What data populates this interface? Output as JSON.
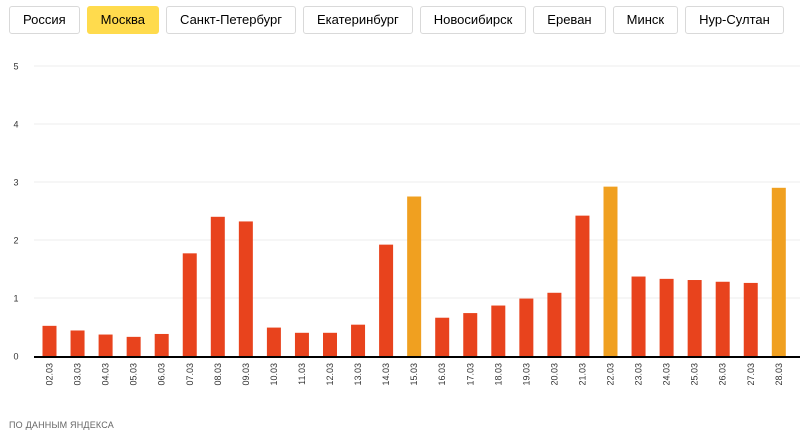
{
  "tabs": [
    {
      "label": "Россия",
      "active": false
    },
    {
      "label": "Москва",
      "active": true
    },
    {
      "label": "Санкт-Петербург",
      "active": false
    },
    {
      "label": "Екатеринбург",
      "active": false
    },
    {
      "label": "Новосибирск",
      "active": false
    },
    {
      "label": "Ереван",
      "active": false
    },
    {
      "label": "Минск",
      "active": false
    },
    {
      "label": "Нур-Султан",
      "active": false
    }
  ],
  "colors": {
    "accent": "#ffdb4d",
    "bar": "#e8431d",
    "bar_highlight": "#f0a020"
  },
  "chart_data": {
    "type": "bar",
    "ylim": [
      0,
      5
    ],
    "yticks": [
      0,
      1,
      2,
      3,
      4,
      5
    ],
    "grid": true,
    "categories": [
      "02.03",
      "03.03",
      "04.03",
      "05.03",
      "06.03",
      "07.03",
      "08.03",
      "09.03",
      "10.03",
      "11.03",
      "12.03",
      "13.03",
      "14.03",
      "15.03",
      "16.03",
      "17.03",
      "18.03",
      "19.03",
      "20.03",
      "21.03",
      "22.03",
      "23.03",
      "24.03",
      "25.03",
      "26.03",
      "27.03",
      "28.03"
    ],
    "values": [
      0.52,
      0.44,
      0.37,
      0.33,
      0.38,
      1.77,
      2.4,
      2.32,
      0.49,
      0.4,
      0.4,
      0.54,
      1.92,
      2.75,
      0.66,
      0.74,
      0.87,
      0.99,
      1.09,
      2.42,
      2.92,
      1.37,
      1.33,
      1.31,
      1.28,
      1.26,
      2.9
    ],
    "highlight": [
      "15.03",
      "22.03",
      "28.03"
    ]
  },
  "source": "ПО ДАННЫМ ЯНДЕКСА"
}
